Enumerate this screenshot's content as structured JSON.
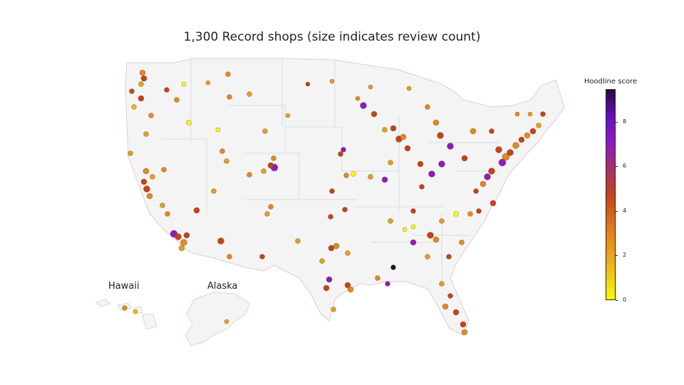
{
  "title": "1,300 Record shops (size indicates review count)",
  "labels": {
    "hawaii": "Hawaii",
    "alaska": "Alaska"
  },
  "colorbar": {
    "title": "Hoodline score",
    "ticks": [
      "0",
      "2",
      "4",
      "6",
      "8"
    ]
  },
  "colors": {
    "land": "#f4f4f4",
    "dot_low": "#f9f90a",
    "dot_mid": "#e08a22",
    "dot_high": "#c2431c",
    "dot_top": "#8a1cc0",
    "dot_max": "#1a1a1a"
  }
}
